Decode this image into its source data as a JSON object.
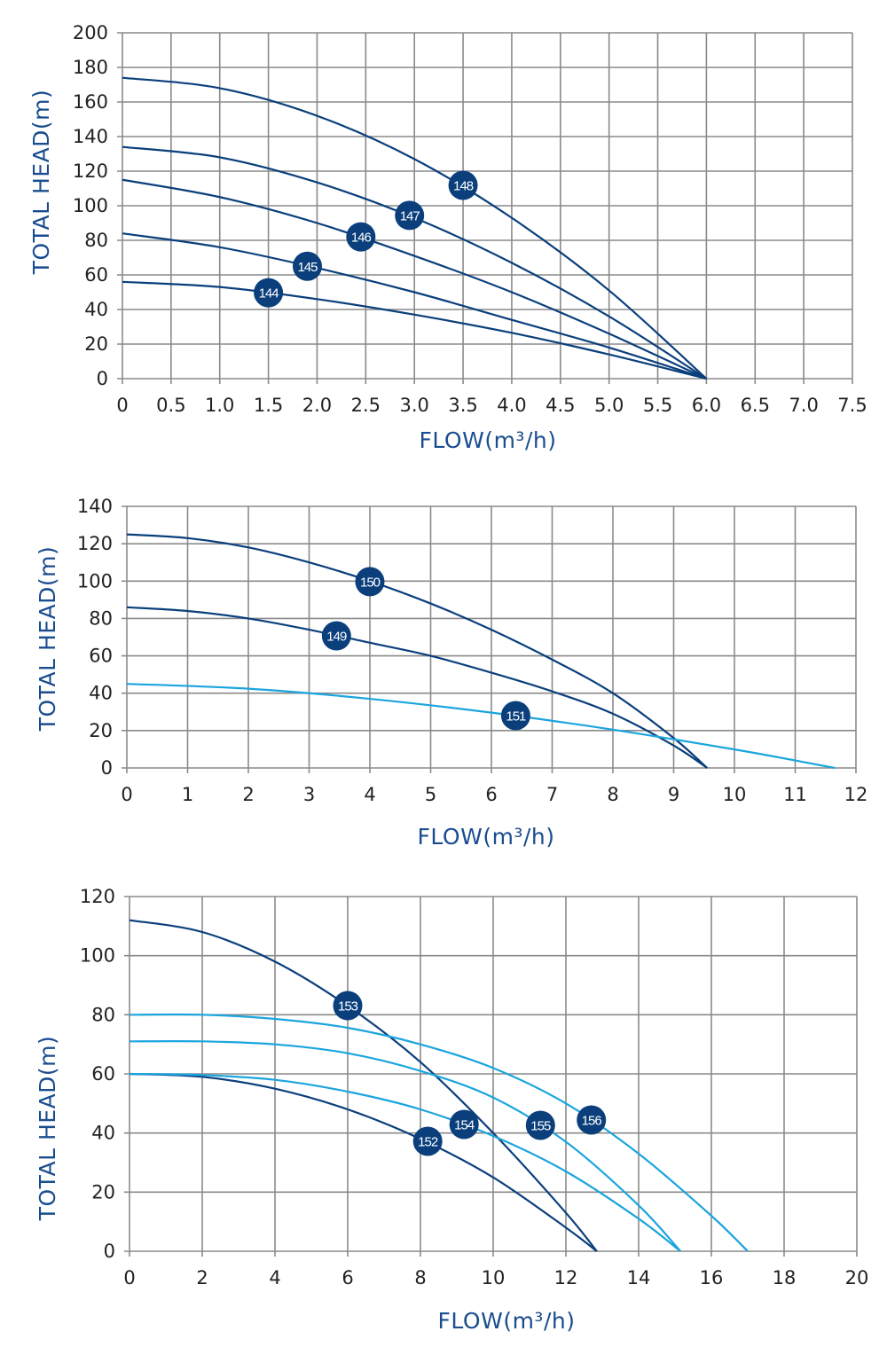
{
  "colors": {
    "dark": "#0b3f7c",
    "light": "#1ba5de",
    "grid": "#8a8a8a",
    "axis_label": "#1a4d8f"
  },
  "chart_data": [
    {
      "type": "line",
      "xlabel": "FLOW(m³/h)",
      "ylabel": "TOTAL HEAD(m)",
      "xlim": [
        0,
        7.5
      ],
      "ylim": [
        0,
        200
      ],
      "grid": true,
      "xticks": [
        "0",
        "0.5",
        "1.0",
        "1.5",
        "2.0",
        "2.5",
        "3.0",
        "3.5",
        "4.0",
        "4.5",
        "5.0",
        "5.5",
        "6.0",
        "6.5",
        "7.0",
        "7.5"
      ],
      "yticks": [
        "0",
        "20",
        "40",
        "60",
        "80",
        "100",
        "120",
        "140",
        "160",
        "180",
        "200"
      ],
      "series": [
        {
          "name": "148",
          "color": "dark",
          "x": [
            0,
            1,
            2,
            3,
            4,
            5,
            6
          ],
          "y": [
            174,
            168,
            152,
            127,
            93,
            51,
            0
          ],
          "label_at": [
            3.5,
            111.8
          ]
        },
        {
          "name": "147",
          "color": "dark",
          "x": [
            0,
            1,
            2,
            3,
            4,
            5,
            6
          ],
          "y": [
            134,
            128,
            113.5,
            93,
            67,
            36,
            0
          ],
          "label_at": [
            2.95,
            94.4
          ]
        },
        {
          "name": "146",
          "color": "dark",
          "x": [
            0,
            1,
            2,
            3,
            4,
            5,
            6
          ],
          "y": [
            115,
            105,
            90,
            71,
            50,
            26,
            0
          ],
          "label_at": [
            2.45,
            82
          ]
        },
        {
          "name": "145",
          "color": "dark",
          "x": [
            0,
            1,
            2,
            3,
            4,
            5,
            6
          ],
          "y": [
            84,
            76,
            64,
            50,
            34,
            18,
            0
          ],
          "label_at": [
            1.9,
            65
          ]
        },
        {
          "name": "144",
          "color": "dark",
          "x": [
            0,
            1,
            2,
            3,
            4,
            5,
            6
          ],
          "y": [
            56,
            53,
            46,
            37,
            26.5,
            14,
            0
          ],
          "label_at": [
            1.5,
            49.7
          ]
        }
      ]
    },
    {
      "type": "line",
      "xlabel": "FLOW(m³/h)",
      "ylabel": "TOTAL HEAD(m)",
      "xlim": [
        0,
        12
      ],
      "ylim": [
        0,
        140
      ],
      "grid": true,
      "xticks": [
        "0",
        "1",
        "2",
        "3",
        "4",
        "5",
        "6",
        "7",
        "8",
        "9",
        "10",
        "11",
        "12"
      ],
      "yticks": [
        "0",
        "20",
        "40",
        "60",
        "80",
        "100",
        "120",
        "140"
      ],
      "series": [
        {
          "name": "150",
          "color": "dark",
          "x": [
            0,
            1,
            2,
            3,
            4,
            5,
            6,
            7,
            8,
            9,
            9.55
          ],
          "y": [
            125,
            123,
            118,
            110,
            100,
            88,
            74,
            58,
            40,
            16,
            0
          ],
          "label_at": [
            4.0,
            99.7
          ]
        },
        {
          "name": "149",
          "color": "dark",
          "x": [
            0,
            1,
            2,
            3,
            4,
            5,
            6,
            7,
            8,
            9,
            9.55
          ],
          "y": [
            86,
            84,
            80,
            74,
            67,
            60,
            51,
            41,
            29,
            12,
            0
          ],
          "label_at": [
            3.45,
            70.7
          ]
        },
        {
          "name": "151",
          "color": "light",
          "x": [
            0,
            2,
            4,
            6,
            8,
            10,
            11,
            11.65
          ],
          "y": [
            45,
            42.4,
            37,
            29.6,
            20.5,
            9.9,
            4,
            0
          ],
          "label_at": [
            6.4,
            28
          ]
        }
      ]
    },
    {
      "type": "line",
      "xlabel": "FLOW(m³/h)",
      "ylabel": "TOTAL HEAD(m)",
      "xlim": [
        0,
        20
      ],
      "ylim": [
        0,
        120
      ],
      "grid": true,
      "xticks": [
        "0",
        "2",
        "4",
        "6",
        "8",
        "10",
        "12",
        "14",
        "16",
        "18",
        "20"
      ],
      "yticks": [
        "0",
        "20",
        "40",
        "60",
        "80",
        "100",
        "120"
      ],
      "series": [
        {
          "name": "153",
          "color": "dark",
          "x": [
            0,
            2,
            4,
            6,
            8,
            10,
            12,
            12.85
          ],
          "y": [
            112,
            108,
            98,
            83,
            64,
            40,
            13,
            0
          ],
          "label_at": [
            6.0,
            83.1
          ]
        },
        {
          "name": "152",
          "color": "dark",
          "x": [
            0,
            2,
            4,
            6,
            8,
            10,
            12,
            12.85
          ],
          "y": [
            60,
            59,
            55,
            48,
            38,
            25,
            8,
            0
          ],
          "label_at": [
            8.2,
            37.2
          ]
        },
        {
          "name": "154",
          "color": "light",
          "x": [
            0,
            2,
            4,
            6,
            8,
            10,
            12,
            14,
            15.15
          ],
          "y": [
            60,
            59.6,
            58,
            54,
            48,
            39,
            27,
            11,
            0
          ],
          "label_at": [
            9.2,
            42.9
          ]
        },
        {
          "name": "155",
          "color": "light",
          "x": [
            0,
            2,
            4,
            6,
            8,
            10,
            12,
            14,
            15.15
          ],
          "y": [
            71,
            71,
            70,
            67,
            61,
            52,
            37,
            15.5,
            0
          ],
          "label_at": [
            11.3,
            42.6
          ]
        },
        {
          "name": "156",
          "color": "light",
          "x": [
            0,
            2,
            4,
            6,
            8,
            10,
            12,
            14,
            16,
            17
          ],
          "y": [
            80,
            80,
            78.6,
            75.6,
            70,
            62,
            50,
            33,
            12,
            0
          ],
          "label_at": [
            12.7,
            44.4
          ]
        }
      ]
    }
  ]
}
